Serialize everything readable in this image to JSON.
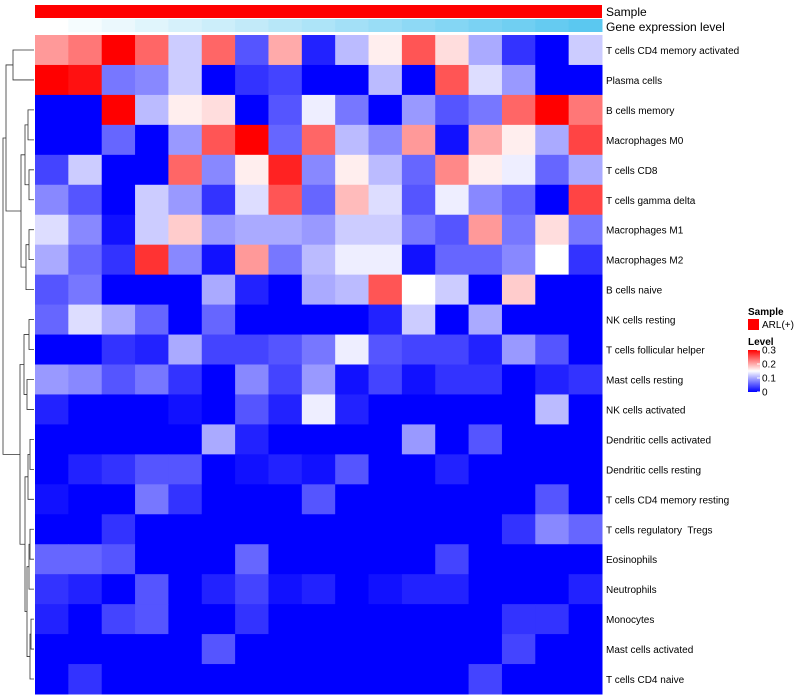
{
  "chart_data": {
    "type": "heatmap",
    "title": "",
    "annotation_tracks": [
      {
        "name": "Sample",
        "label": "Sample",
        "color": "#FF0000"
      },
      {
        "name": "Gene expression level",
        "label": "Gene expression level",
        "colors": [
          "#FFFFFF",
          "#5BC8F0"
        ]
      }
    ],
    "rows": [
      "T cells CD4 memory activated",
      "Plasma cells",
      "B cells memory",
      "Macrophages M0",
      "T cells CD8",
      "T cells gamma delta",
      "Macrophages M1",
      "Macrophages M2",
      "B cells naive",
      "NK cells resting",
      "T cells follicular helper",
      "Mast cells resting",
      "NK cells activated",
      "Dendritic cells activated",
      "Dendritic cells resting",
      "T cells CD4 memory resting",
      "T cells regulatory  Tregs",
      "Eosinophils",
      "Neutrophils",
      "Monocytes",
      "Mast cells activated",
      "T cells CD4 naive"
    ],
    "n_columns": 17,
    "values": [
      [
        0.21,
        0.23,
        0.3,
        0.24,
        0.12,
        0.24,
        0.05,
        0.2,
        0.02,
        0.11,
        0.16,
        0.25,
        0.17,
        0.1,
        0.03,
        0.0,
        0.12
      ],
      [
        0.3,
        0.29,
        0.07,
        0.08,
        0.12,
        0.0,
        0.03,
        0.04,
        0.0,
        0.0,
        0.11,
        0.0,
        0.25,
        0.13,
        0.09,
        0.0,
        0.0
      ],
      [
        0.0,
        0.0,
        0.3,
        0.11,
        0.16,
        0.17,
        0.0,
        0.05,
        0.14,
        0.07,
        0.0,
        0.09,
        0.05,
        0.07,
        0.24,
        0.3,
        0.23
      ],
      [
        0.0,
        0.0,
        0.06,
        0.0,
        0.09,
        0.25,
        0.3,
        0.06,
        0.24,
        0.11,
        0.08,
        0.21,
        0.01,
        0.2,
        0.16,
        0.1,
        0.26
      ],
      [
        0.04,
        0.12,
        0.0,
        0.0,
        0.24,
        0.08,
        0.16,
        0.28,
        0.08,
        0.16,
        0.11,
        0.06,
        0.22,
        0.16,
        0.14,
        0.06,
        0.1
      ],
      [
        0.08,
        0.05,
        0.0,
        0.12,
        0.09,
        0.03,
        0.13,
        0.25,
        0.06,
        0.19,
        0.13,
        0.05,
        0.14,
        0.08,
        0.06,
        0.0,
        0.26
      ],
      [
        0.13,
        0.08,
        0.01,
        0.12,
        0.18,
        0.09,
        0.1,
        0.1,
        0.09,
        0.12,
        0.12,
        0.07,
        0.05,
        0.21,
        0.07,
        0.17,
        0.07
      ],
      [
        0.1,
        0.06,
        0.03,
        0.27,
        0.08,
        0.01,
        0.21,
        0.07,
        0.11,
        0.14,
        0.14,
        0.01,
        0.06,
        0.06,
        0.08,
        0.15,
        0.03
      ],
      [
        0.05,
        0.07,
        0.0,
        0.0,
        0.0,
        0.1,
        0.02,
        0.0,
        0.1,
        0.11,
        0.25,
        0.15,
        0.12,
        0.0,
        0.18,
        0.0,
        0.0
      ],
      [
        0.06,
        0.13,
        0.1,
        0.06,
        0.0,
        0.06,
        0.0,
        0.0,
        0.0,
        0.0,
        0.02,
        0.12,
        0.0,
        0.1,
        0.0,
        0.0,
        0.0
      ],
      [
        0.0,
        0.0,
        0.03,
        0.02,
        0.1,
        0.04,
        0.04,
        0.05,
        0.07,
        0.14,
        0.05,
        0.04,
        0.04,
        0.02,
        0.09,
        0.05,
        0.0
      ],
      [
        0.09,
        0.08,
        0.05,
        0.07,
        0.03,
        0.0,
        0.08,
        0.04,
        0.09,
        0.01,
        0.04,
        0.01,
        0.03,
        0.03,
        0.0,
        0.02,
        0.03
      ],
      [
        0.02,
        0.0,
        0.0,
        0.0,
        0.01,
        0.0,
        0.05,
        0.02,
        0.14,
        0.02,
        0.0,
        0.0,
        0.0,
        0.0,
        0.0,
        0.11,
        0.0
      ],
      [
        0.0,
        0.0,
        0.0,
        0.0,
        0.0,
        0.1,
        0.02,
        0.0,
        0.0,
        0.0,
        0.0,
        0.09,
        0.0,
        0.05,
        0.0,
        0.0,
        0.0
      ],
      [
        0.0,
        0.02,
        0.03,
        0.05,
        0.05,
        0.0,
        0.01,
        0.02,
        0.01,
        0.05,
        0.0,
        0.0,
        0.02,
        0.0,
        0.0,
        0.0,
        0.0
      ],
      [
        0.01,
        0.0,
        0.0,
        0.07,
        0.03,
        0.0,
        0.0,
        0.0,
        0.05,
        0.0,
        0.0,
        0.0,
        0.0,
        0.0,
        0.0,
        0.05,
        0.0
      ],
      [
        0.0,
        0.0,
        0.03,
        0.0,
        0.0,
        0.0,
        0.0,
        0.0,
        0.0,
        0.0,
        0.0,
        0.0,
        0.0,
        0.0,
        0.03,
        0.08,
        0.06
      ],
      [
        0.06,
        0.06,
        0.05,
        0.0,
        0.0,
        0.0,
        0.06,
        0.0,
        0.0,
        0.0,
        0.0,
        0.0,
        0.04,
        0.0,
        0.0,
        0.0,
        0.0
      ],
      [
        0.03,
        0.02,
        0.0,
        0.05,
        0.0,
        0.02,
        0.04,
        0.01,
        0.02,
        0.0,
        0.01,
        0.02,
        0.02,
        0.0,
        0.0,
        0.0,
        0.02
      ],
      [
        0.02,
        0.0,
        0.04,
        0.05,
        0.0,
        0.0,
        0.03,
        0.0,
        0.0,
        0.0,
        0.0,
        0.0,
        0.0,
        0.0,
        0.03,
        0.03,
        0.0
      ],
      [
        0.0,
        0.0,
        0.0,
        0.0,
        0.0,
        0.05,
        0.0,
        0.0,
        0.0,
        0.0,
        0.0,
        0.0,
        0.0,
        0.0,
        0.04,
        0.0,
        0.0
      ],
      [
        0.0,
        0.03,
        0.0,
        0.0,
        0.0,
        0.0,
        0.0,
        0.0,
        0.0,
        0.0,
        0.0,
        0.0,
        0.0,
        0.04,
        0.0,
        0.0,
        0.0
      ]
    ],
    "color_scale": {
      "low_color": "#0000FF",
      "mid_color": "#FFFFFF",
      "high_color": "#FF0000",
      "range": [
        0,
        0.3
      ],
      "midpoint": 0.15
    },
    "legend": {
      "sample_title": "Sample",
      "sample_entry": "ARL(+)",
      "sample_color": "#FF0000",
      "level_title": "Level",
      "level_ticks": [
        "0.3",
        "0.2",
        "0.1",
        "0"
      ],
      "level_tick_values": [
        0.3,
        0.2,
        0.1,
        0
      ]
    },
    "row_dendrogram": true,
    "column_dendrogram": false
  }
}
